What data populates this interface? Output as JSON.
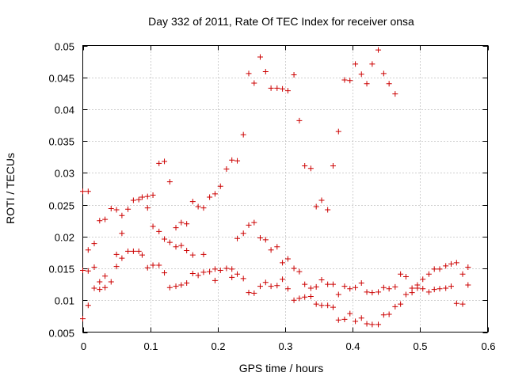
{
  "chart_data": {
    "type": "scatter",
    "title": "Day 332 of 2011, Rate Of TEC Index for receiver onsa",
    "xlabel": "GPS time / hours",
    "ylabel": "ROTI / TECUs",
    "xlim": [
      0,
      0.6
    ],
    "ylim": [
      0.005,
      0.05
    ],
    "xticks": [
      0,
      0.1,
      0.2,
      0.3,
      0.4,
      0.5,
      0.6
    ],
    "xtick_labels": [
      "0",
      "0.1",
      "0.2",
      "0.3",
      "0.4",
      "0.5",
      "0.6"
    ],
    "yticks": [
      0.005,
      0.01,
      0.015,
      0.02,
      0.025,
      0.03,
      0.035,
      0.04,
      0.045,
      0.05
    ],
    "ytick_labels": [
      "0.005",
      "0.01",
      "0.015",
      "0.02",
      "0.025",
      "0.03",
      "0.035",
      "0.04",
      "0.045",
      "0.05"
    ],
    "grid": true,
    "marker": "+",
    "series": [
      {
        "name": "ROTI",
        "color": "#cc0000",
        "points": [
          [
            0.0,
            0.0271
          ],
          [
            0.0,
            0.0147
          ],
          [
            0.0,
            0.0071
          ],
          [
            0.008,
            0.0271
          ],
          [
            0.008,
            0.0146
          ],
          [
            0.008,
            0.0179
          ],
          [
            0.008,
            0.0092
          ],
          [
            0.017,
            0.0189
          ],
          [
            0.017,
            0.0152
          ],
          [
            0.017,
            0.0119
          ],
          [
            0.025,
            0.0225
          ],
          [
            0.025,
            0.0129
          ],
          [
            0.025,
            0.0117
          ],
          [
            0.033,
            0.0227
          ],
          [
            0.033,
            0.0138
          ],
          [
            0.033,
            0.012
          ],
          [
            0.042,
            0.0244
          ],
          [
            0.042,
            0.0129
          ],
          [
            0.05,
            0.0242
          ],
          [
            0.05,
            0.0172
          ],
          [
            0.05,
            0.0153
          ],
          [
            0.058,
            0.0233
          ],
          [
            0.058,
            0.0205
          ],
          [
            0.058,
            0.0166
          ],
          [
            0.067,
            0.0243
          ],
          [
            0.067,
            0.0177
          ],
          [
            0.075,
            0.0257
          ],
          [
            0.075,
            0.0177
          ],
          [
            0.083,
            0.0258
          ],
          [
            0.083,
            0.0177
          ],
          [
            0.088,
            0.0262
          ],
          [
            0.088,
            0.0171
          ],
          [
            0.096,
            0.0263
          ],
          [
            0.096,
            0.0245
          ],
          [
            0.096,
            0.0151
          ],
          [
            0.104,
            0.0265
          ],
          [
            0.104,
            0.0216
          ],
          [
            0.104,
            0.0155
          ],
          [
            0.113,
            0.0315
          ],
          [
            0.113,
            0.0208
          ],
          [
            0.113,
            0.0155
          ],
          [
            0.121,
            0.0318
          ],
          [
            0.121,
            0.0196
          ],
          [
            0.121,
            0.0143
          ],
          [
            0.129,
            0.0286
          ],
          [
            0.129,
            0.0191
          ],
          [
            0.129,
            0.012
          ],
          [
            0.138,
            0.0214
          ],
          [
            0.138,
            0.0184
          ],
          [
            0.138,
            0.0122
          ],
          [
            0.146,
            0.0222
          ],
          [
            0.146,
            0.0186
          ],
          [
            0.146,
            0.0124
          ],
          [
            0.154,
            0.022
          ],
          [
            0.154,
            0.0178
          ],
          [
            0.154,
            0.0127
          ],
          [
            0.163,
            0.0255
          ],
          [
            0.163,
            0.0171
          ],
          [
            0.163,
            0.0142
          ],
          [
            0.171,
            0.0247
          ],
          [
            0.171,
            0.0139
          ],
          [
            0.179,
            0.0245
          ],
          [
            0.179,
            0.0172
          ],
          [
            0.179,
            0.0144
          ],
          [
            0.188,
            0.0262
          ],
          [
            0.188,
            0.0145
          ],
          [
            0.196,
            0.0267
          ],
          [
            0.196,
            0.0149
          ],
          [
            0.196,
            0.0131
          ],
          [
            0.204,
            0.0279
          ],
          [
            0.204,
            0.0147
          ],
          [
            0.213,
            0.0306
          ],
          [
            0.213,
            0.015
          ],
          [
            0.221,
            0.032
          ],
          [
            0.221,
            0.0149
          ],
          [
            0.221,
            0.0136
          ],
          [
            0.229,
            0.0319
          ],
          [
            0.229,
            0.0197
          ],
          [
            0.229,
            0.0141
          ],
          [
            0.238,
            0.036
          ],
          [
            0.238,
            0.0205
          ],
          [
            0.238,
            0.0134
          ],
          [
            0.246,
            0.0456
          ],
          [
            0.246,
            0.0218
          ],
          [
            0.246,
            0.0112
          ],
          [
            0.254,
            0.0441
          ],
          [
            0.254,
            0.0222
          ],
          [
            0.254,
            0.0111
          ],
          [
            0.263,
            0.0482
          ],
          [
            0.263,
            0.0198
          ],
          [
            0.263,
            0.0122
          ],
          [
            0.271,
            0.0459
          ],
          [
            0.271,
            0.0195
          ],
          [
            0.271,
            0.0128
          ],
          [
            0.279,
            0.0433
          ],
          [
            0.279,
            0.0179
          ],
          [
            0.279,
            0.0122
          ],
          [
            0.288,
            0.0433
          ],
          [
            0.288,
            0.0184
          ],
          [
            0.288,
            0.0123
          ],
          [
            0.296,
            0.0432
          ],
          [
            0.296,
            0.0159
          ],
          [
            0.296,
            0.0133
          ],
          [
            0.304,
            0.0429
          ],
          [
            0.304,
            0.0165
          ],
          [
            0.304,
            0.0118
          ],
          [
            0.313,
            0.0454
          ],
          [
            0.313,
            0.015
          ],
          [
            0.313,
            0.01
          ],
          [
            0.321,
            0.0382
          ],
          [
            0.321,
            0.0145
          ],
          [
            0.321,
            0.0103
          ],
          [
            0.329,
            0.0311
          ],
          [
            0.329,
            0.0125
          ],
          [
            0.329,
            0.0105
          ],
          [
            0.338,
            0.0307
          ],
          [
            0.338,
            0.0119
          ],
          [
            0.338,
            0.0106
          ],
          [
            0.346,
            0.0247
          ],
          [
            0.346,
            0.0121
          ],
          [
            0.346,
            0.0094
          ],
          [
            0.354,
            0.0257
          ],
          [
            0.354,
            0.0132
          ],
          [
            0.354,
            0.0092
          ],
          [
            0.363,
            0.0242
          ],
          [
            0.363,
            0.0125
          ],
          [
            0.363,
            0.0092
          ],
          [
            0.371,
            0.0311
          ],
          [
            0.371,
            0.0125
          ],
          [
            0.371,
            0.0089
          ],
          [
            0.379,
            0.0365
          ],
          [
            0.379,
            0.0109
          ],
          [
            0.379,
            0.0069
          ],
          [
            0.388,
            0.0446
          ],
          [
            0.388,
            0.0122
          ],
          [
            0.388,
            0.007
          ],
          [
            0.396,
            0.0445
          ],
          [
            0.396,
            0.0118
          ],
          [
            0.396,
            0.0079
          ],
          [
            0.404,
            0.0471
          ],
          [
            0.404,
            0.012
          ],
          [
            0.404,
            0.0067
          ],
          [
            0.413,
            0.0455
          ],
          [
            0.413,
            0.0127
          ],
          [
            0.413,
            0.0072
          ],
          [
            0.421,
            0.044
          ],
          [
            0.421,
            0.0113
          ],
          [
            0.421,
            0.0063
          ],
          [
            0.429,
            0.0471
          ],
          [
            0.429,
            0.0112
          ],
          [
            0.429,
            0.0062
          ],
          [
            0.438,
            0.0493
          ],
          [
            0.438,
            0.0113
          ],
          [
            0.438,
            0.0062
          ],
          [
            0.446,
            0.0456
          ],
          [
            0.446,
            0.012
          ],
          [
            0.446,
            0.0077
          ],
          [
            0.454,
            0.044
          ],
          [
            0.454,
            0.0118
          ],
          [
            0.454,
            0.0078
          ],
          [
            0.463,
            0.0424
          ],
          [
            0.463,
            0.0121
          ],
          [
            0.463,
            0.009
          ],
          [
            0.471,
            0.0141
          ],
          [
            0.471,
            0.0094
          ],
          [
            0.479,
            0.0137
          ],
          [
            0.479,
            0.0109
          ],
          [
            0.488,
            0.0119
          ],
          [
            0.488,
            0.0112
          ],
          [
            0.496,
            0.0124
          ],
          [
            0.496,
            0.0119
          ],
          [
            0.504,
            0.0133
          ],
          [
            0.504,
            0.0118
          ],
          [
            0.513,
            0.0141
          ],
          [
            0.513,
            0.0113
          ],
          [
            0.521,
            0.0149
          ],
          [
            0.521,
            0.0117
          ],
          [
            0.529,
            0.0149
          ],
          [
            0.529,
            0.0118
          ],
          [
            0.538,
            0.0154
          ],
          [
            0.538,
            0.0119
          ],
          [
            0.546,
            0.0157
          ],
          [
            0.546,
            0.0122
          ],
          [
            0.554,
            0.0159
          ],
          [
            0.554,
            0.0095
          ],
          [
            0.563,
            0.0141
          ],
          [
            0.563,
            0.0094
          ],
          [
            0.571,
            0.0152
          ],
          [
            0.571,
            0.0124
          ]
        ]
      }
    ]
  }
}
